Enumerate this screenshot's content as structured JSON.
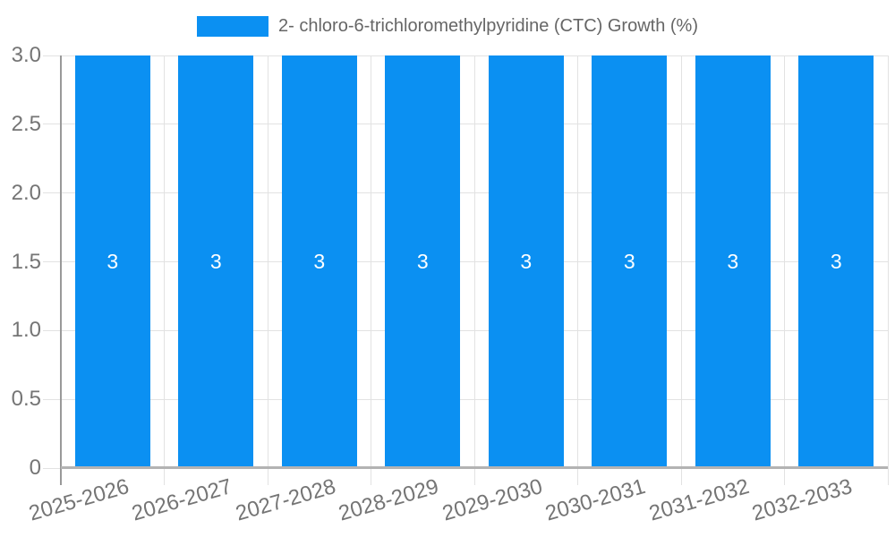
{
  "chart_data": {
    "type": "bar",
    "title": "",
    "legend": {
      "label": "2- chloro-6-trichloromethylpyridine (CTC) Growth (%)",
      "position": "top"
    },
    "categories": [
      "2025-2026",
      "2026-2027",
      "2027-2028",
      "2028-2029",
      "2029-2030",
      "2030-2031",
      "2031-2032",
      "2032-2033"
    ],
    "values": [
      3,
      3,
      3,
      3,
      3,
      3,
      3,
      3
    ],
    "bar_value_labels": [
      "3",
      "3",
      "3",
      "3",
      "3",
      "3",
      "3",
      "3"
    ],
    "xlabel": "",
    "ylabel": "",
    "ylim": [
      0,
      3
    ],
    "ytick_values": [
      0,
      0.5,
      1.0,
      1.5,
      2.0,
      2.5,
      3.0
    ],
    "ytick_labels": [
      "0",
      "0.5",
      "1.0",
      "1.5",
      "2.0",
      "2.5",
      "3.0"
    ],
    "grid": true,
    "bar_label_position": "center",
    "colors": {
      "bar": "#0b90f2",
      "grid": "#e2e2e2",
      "axis_line": "#999999",
      "baseline": "#b3b3b3",
      "tick_text": "#757575",
      "bar_label_text": "#ffffff",
      "legend_text": "#666666",
      "background": "#ffffff"
    }
  }
}
